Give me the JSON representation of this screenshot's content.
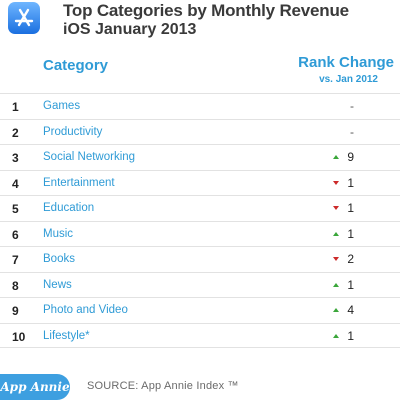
{
  "header": {
    "icon": "app-store-icon",
    "title": "Top Categories by Monthly Revenue",
    "subtitle": "iOS January 2013"
  },
  "chart_data": {
    "type": "table",
    "columns": [
      "",
      "Category",
      "Rank Change"
    ],
    "rank_change_sub": "vs. Jan 2012",
    "rows": [
      {
        "rank": "1",
        "category": "Games",
        "direction": "none",
        "change": "-"
      },
      {
        "rank": "2",
        "category": "Productivity",
        "direction": "none",
        "change": "-"
      },
      {
        "rank": "3",
        "category": "Social Networking",
        "direction": "up",
        "change": "9"
      },
      {
        "rank": "4",
        "category": "Entertainment",
        "direction": "down",
        "change": "1"
      },
      {
        "rank": "5",
        "category": "Education",
        "direction": "down",
        "change": "1"
      },
      {
        "rank": "6",
        "category": "Music",
        "direction": "up",
        "change": "1"
      },
      {
        "rank": "7",
        "category": "Books",
        "direction": "down",
        "change": "2"
      },
      {
        "rank": "8",
        "category": "News",
        "direction": "up",
        "change": "1"
      },
      {
        "rank": "9",
        "category": "Photo and Video",
        "direction": "up",
        "change": "4"
      },
      {
        "rank": "10",
        "category": "Lifestyle*",
        "direction": "up",
        "change": "1"
      }
    ]
  },
  "colors": {
    "accent": "#2f9bd6",
    "up": "#3aa63a",
    "down": "#cc2a2a"
  },
  "footer": {
    "logo_text": "App Annie",
    "source": "SOURCE: App Annie Index ™"
  }
}
